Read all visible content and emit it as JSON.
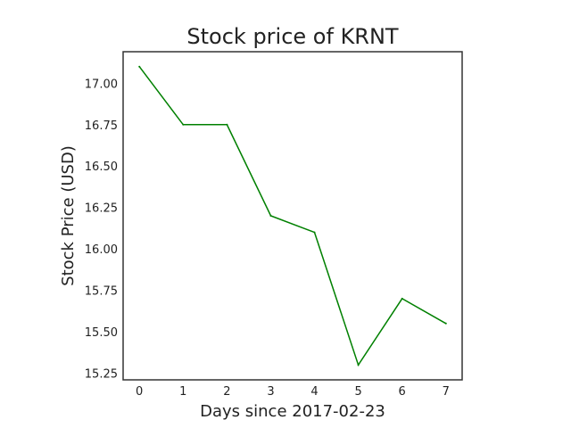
{
  "chart_data": {
    "type": "line",
    "title": "Stock price of KRNT",
    "xlabel": "Days since 2017-02-23",
    "ylabel": "Stock Price (USD)",
    "x": [
      0,
      1,
      2,
      3,
      4,
      5,
      6,
      7
    ],
    "series": [
      {
        "values": [
          17.1,
          16.75,
          16.75,
          16.2,
          16.1,
          15.3,
          15.7,
          15.55
        ],
        "color": "#008000"
      }
    ],
    "xticks": [
      "0",
      "1",
      "2",
      "3",
      "4",
      "5",
      "6",
      "7"
    ],
    "yticks": [
      "15.25",
      "15.50",
      "15.75",
      "16.00",
      "16.25",
      "16.50",
      "16.75",
      "17.00"
    ],
    "xlim": [
      -0.37,
      7.37
    ],
    "ylim": [
      15.21,
      17.19
    ],
    "grid": false,
    "legend": "none"
  }
}
